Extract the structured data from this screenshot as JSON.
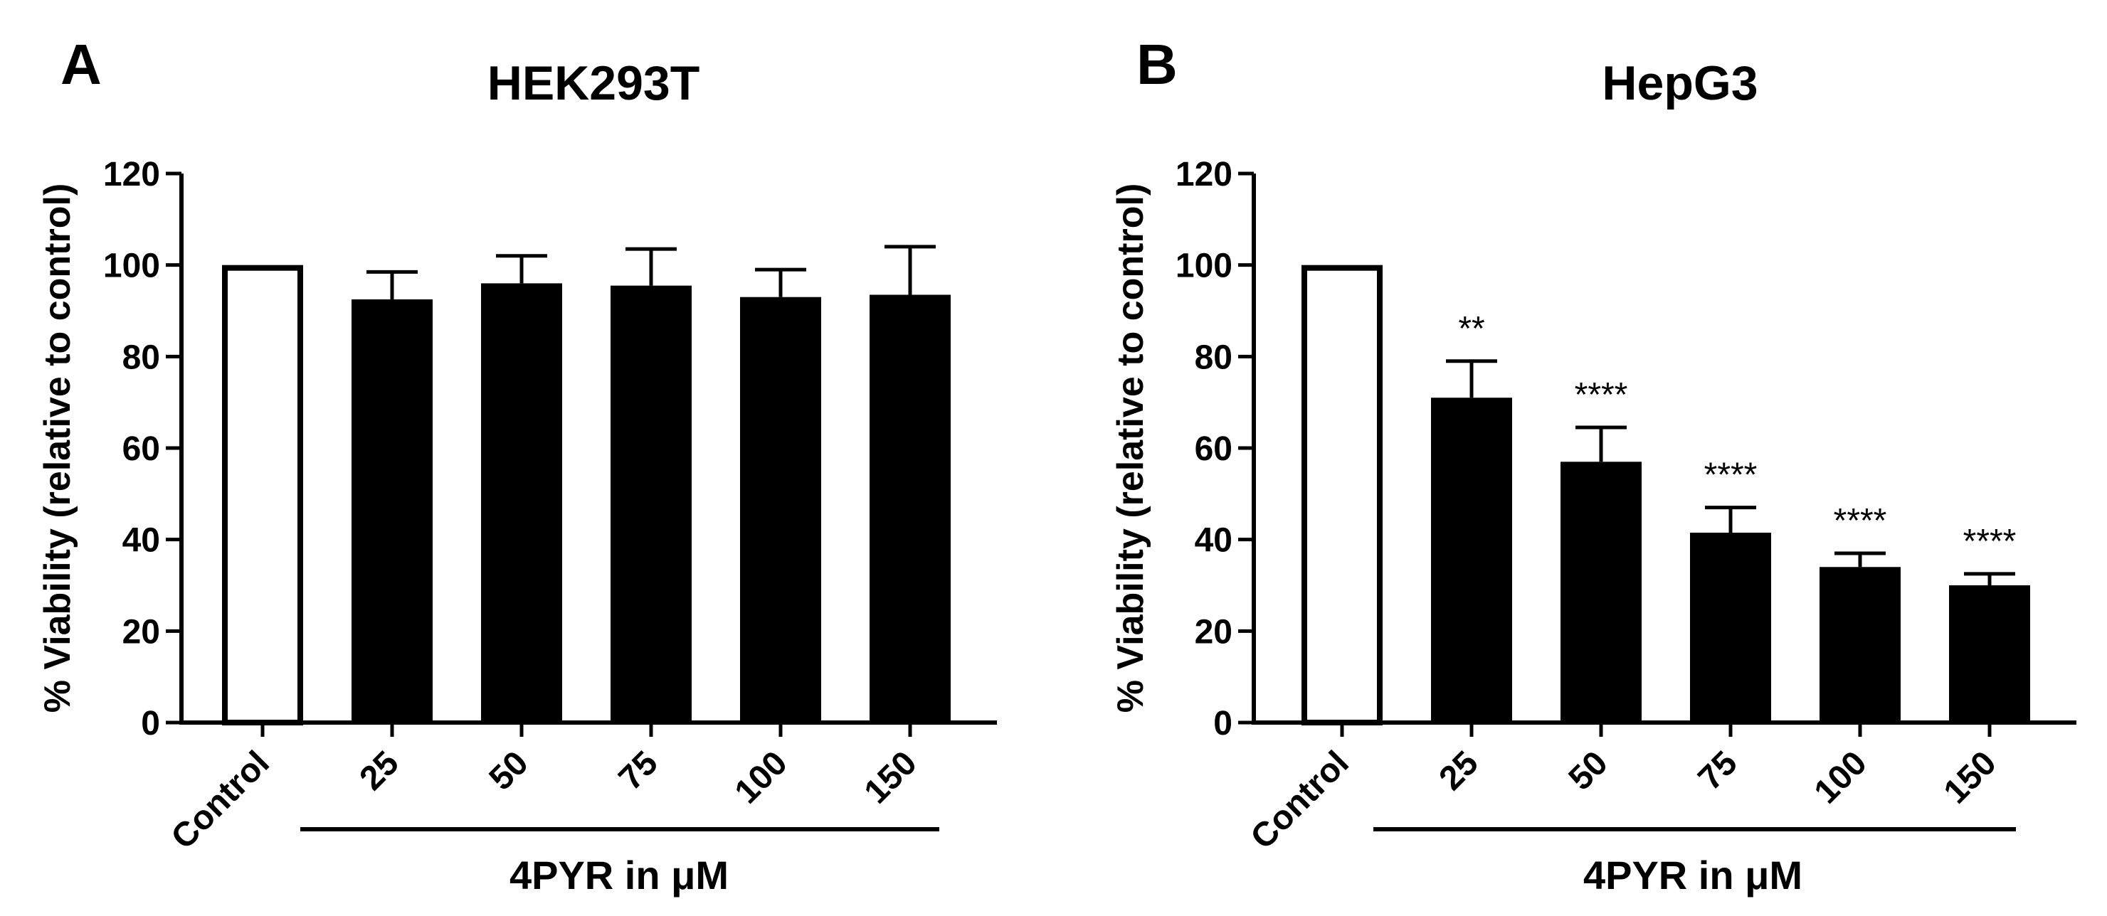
{
  "chart_data": [
    {
      "type": "bar",
      "panel_letter": "A",
      "title": "HEK293T",
      "ylabel": "% Viability (relative to control)",
      "xlabel": "4PYR in μM",
      "categories": [
        "Control",
        "25",
        "50",
        "75",
        "100",
        "150"
      ],
      "values": [
        100,
        92.5,
        96,
        95.5,
        93,
        93.5
      ],
      "errors": [
        0,
        6,
        6,
        8,
        6,
        10.5
      ],
      "significance": [
        "",
        "",
        "",
        "",
        "",
        ""
      ],
      "ylim": [
        0,
        120
      ],
      "yticks": [
        0,
        20,
        40,
        60,
        80,
        100,
        120
      ],
      "control_style": "open",
      "bar_color": "#000000"
    },
    {
      "type": "bar",
      "panel_letter": "B",
      "title": "HepG3",
      "ylabel": "% Viability (relative to control)",
      "xlabel": "4PYR in μM",
      "categories": [
        "Control",
        "25",
        "50",
        "75",
        "100",
        "150"
      ],
      "values": [
        100,
        71,
        57,
        41.5,
        34,
        30
      ],
      "errors": [
        0,
        8,
        7.5,
        5.5,
        3,
        2.5
      ],
      "significance": [
        "",
        "**",
        "****",
        "****",
        "****",
        "****"
      ],
      "ylim": [
        0,
        120
      ],
      "yticks": [
        0,
        20,
        40,
        60,
        80,
        100,
        120
      ],
      "control_style": "open",
      "bar_color": "#000000"
    }
  ]
}
